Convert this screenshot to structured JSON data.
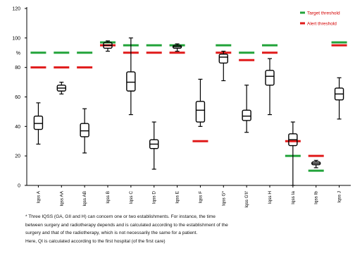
{
  "chart_data": {
    "type": "boxplot",
    "ylim": [
      0,
      120
    ],
    "yticks": [
      0,
      20,
      40,
      60,
      80,
      100,
      120
    ],
    "ytick_labels": [
      "0",
      "20",
      "40",
      "60",
      "80",
      "%",
      "100",
      "120"
    ],
    "ytick_label_values": [
      0,
      20,
      40,
      60,
      80,
      90,
      100,
      120
    ],
    "categories": [
      "Iqss A",
      "Iqss AA",
      "Iqss AB",
      "Iqss B",
      "Iqss C",
      "Iqss D",
      "Iqss E",
      "Iqss F",
      "Iqss G*",
      "Iqss G'll'",
      "Iqss H",
      "Iqss Ia",
      "Iqss Ib",
      "Iqss J"
    ],
    "boxes": [
      {
        "min": 28,
        "q1": 38,
        "median": 42,
        "q3": 47,
        "max": 56
      },
      {
        "min": 62,
        "q1": 64,
        "median": 66,
        "q3": 68,
        "max": 70
      },
      {
        "min": 22,
        "q1": 33,
        "median": 37,
        "q3": 42,
        "max": 52
      },
      {
        "min": 91,
        "q1": 93,
        "median": 95,
        "q3": 97,
        "max": 98
      },
      {
        "min": 48,
        "q1": 64,
        "median": 70,
        "q3": 77,
        "max": 100
      },
      {
        "min": 11,
        "q1": 25,
        "median": 28,
        "q3": 31,
        "max": 43
      },
      {
        "min": 91,
        "q1": 93,
        "median": 94,
        "q3": 95,
        "max": 96
      },
      {
        "min": 40,
        "q1": 43,
        "median": 51,
        "q3": 57,
        "max": 72
      },
      {
        "min": 71,
        "q1": 83,
        "median": 87,
        "q3": 89,
        "max": 91
      },
      {
        "min": 36,
        "q1": 44,
        "median": 47,
        "q3": 51,
        "max": 68
      },
      {
        "min": 48,
        "q1": 68,
        "median": 74,
        "q3": 78,
        "max": 86
      },
      {
        "min": 0,
        "q1": 27,
        "median": 31,
        "q3": 35,
        "max": 43
      },
      {
        "min": 12,
        "q1": 14,
        "median": 15,
        "q3": 16,
        "max": 17
      },
      {
        "min": 45,
        "q1": 58,
        "median": 62,
        "q3": 66,
        "max": 73
      }
    ],
    "target_threshold": [
      90,
      90,
      90,
      97,
      95,
      95,
      95,
      null,
      95,
      90,
      95,
      20,
      10,
      97
    ],
    "alert_threshold": [
      80,
      80,
      80,
      95,
      90,
      90,
      90,
      30,
      90,
      85,
      90,
      30,
      20,
      95
    ],
    "legend": [
      {
        "name": "Target threshold",
        "color": "#22a33a"
      },
      {
        "name": "Alert threshold",
        "color": "#e01a1a"
      }
    ],
    "colors": {
      "target": "#22a33a",
      "alert": "#e01a1a",
      "box": "#000000"
    }
  },
  "footnote": [
    "* Three IQSS (GA, GII and H) can concern one or two establishments. For instance, the time",
    "between surgery and radiotherapy depends and is calculated according to the establishment of the",
    "surgery and that of the radiotherapy, which is not necessarily the same for a patient.",
    "Here, QI is calculated according to the first hospital (of the first care)"
  ]
}
